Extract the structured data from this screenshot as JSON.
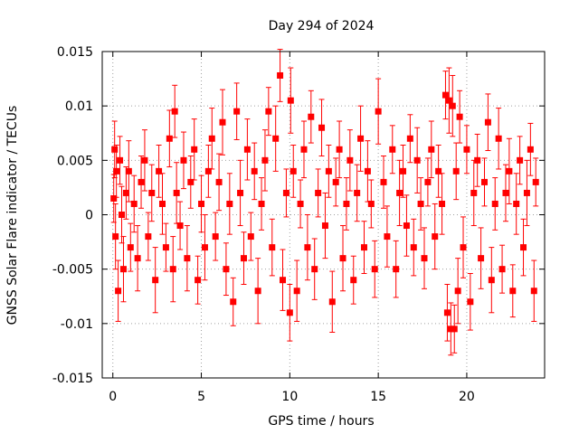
{
  "chart_data": {
    "type": "scatter",
    "title": "Day 294 of 2024",
    "xlabel": "GPS time / hours",
    "ylabel": "GNSS Solar Flare indicator / TECUs",
    "xlim": [
      -0.6,
      24.4
    ],
    "ylim": [
      -0.015,
      0.015
    ],
    "xticks": [
      0,
      5,
      10,
      15,
      20
    ],
    "yticks": [
      -0.015,
      -0.01,
      -0.005,
      0,
      0.005,
      0.01,
      0.015
    ],
    "xtick_labels": [
      "0",
      "5",
      "10",
      "15",
      "20"
    ],
    "ytick_labels": [
      "-0.015",
      "-0.01",
      "-0.005",
      "0",
      "0.005",
      "0.01",
      "0.015"
    ],
    "grid": true,
    "legend": "none",
    "series_color": "#ff0000",
    "series": [
      {
        "error_bars": true,
        "x": [
          0.05,
          0.1,
          0.15,
          0.2,
          0.3,
          0.4,
          0.5,
          0.6,
          0.75,
          0.9,
          1.0,
          1.2,
          1.4,
          1.6,
          1.8,
          2.0,
          2.2,
          2.4,
          2.6,
          2.8,
          3.0,
          3.2,
          3.4,
          3.5,
          3.6,
          3.8,
          4.0,
          4.2,
          4.4,
          4.6,
          4.8,
          5.0,
          5.2,
          5.4,
          5.6,
          5.8,
          6.0,
          6.2,
          6.4,
          6.6,
          6.8,
          7.0,
          7.2,
          7.4,
          7.6,
          7.8,
          8.0,
          8.2,
          8.4,
          8.6,
          8.8,
          9.0,
          9.2,
          9.45,
          9.6,
          9.8,
          10.0,
          10.05,
          10.2,
          10.4,
          10.6,
          10.8,
          11.0,
          11.2,
          11.4,
          11.6,
          11.8,
          12.0,
          12.2,
          12.4,
          12.6,
          12.8,
          13.0,
          13.2,
          13.4,
          13.6,
          13.8,
          14.0,
          14.2,
          14.4,
          14.6,
          14.8,
          15.0,
          15.3,
          15.5,
          15.8,
          16.0,
          16.2,
          16.4,
          16.6,
          16.8,
          17.0,
          17.2,
          17.4,
          17.6,
          17.8,
          18.0,
          18.2,
          18.4,
          18.6,
          18.8,
          18.9,
          19.0,
          19.1,
          19.2,
          19.3,
          19.4,
          19.5,
          19.6,
          19.8,
          20.0,
          20.2,
          20.4,
          20.6,
          20.8,
          21.0,
          21.2,
          21.4,
          21.6,
          21.8,
          22.0,
          22.2,
          22.4,
          22.6,
          22.8,
          23.0,
          23.2,
          23.4,
          23.6,
          23.8,
          23.9
        ],
        "y": [
          0.0015,
          0.006,
          -0.002,
          0.004,
          -0.007,
          0.005,
          0.0,
          -0.005,
          0.002,
          0.004,
          -0.003,
          0.001,
          -0.004,
          0.003,
          0.005,
          -0.002,
          0.002,
          -0.006,
          0.004,
          0.001,
          -0.003,
          0.007,
          -0.005,
          0.0095,
          0.002,
          -0.001,
          0.005,
          -0.004,
          0.003,
          0.006,
          -0.006,
          0.001,
          -0.003,
          0.004,
          0.007,
          -0.002,
          0.003,
          0.0085,
          -0.005,
          0.001,
          -0.008,
          0.0095,
          0.002,
          -0.004,
          0.006,
          -0.002,
          0.004,
          -0.007,
          0.001,
          0.005,
          0.0095,
          -0.003,
          0.007,
          0.0128,
          -0.006,
          0.002,
          -0.009,
          0.0105,
          0.004,
          -0.007,
          0.001,
          0.006,
          -0.003,
          0.009,
          -0.005,
          0.002,
          0.008,
          -0.001,
          0.004,
          -0.008,
          0.003,
          0.006,
          -0.004,
          0.001,
          0.005,
          -0.006,
          0.002,
          0.007,
          -0.003,
          0.004,
          0.001,
          -0.005,
          0.0095,
          0.003,
          -0.002,
          0.006,
          -0.005,
          0.002,
          0.004,
          -0.001,
          0.007,
          -0.003,
          0.005,
          0.001,
          -0.004,
          0.003,
          0.006,
          -0.002,
          0.004,
          0.001,
          0.011,
          -0.009,
          0.0105,
          -0.0105,
          0.01,
          -0.0105,
          0.004,
          -0.007,
          0.009,
          -0.003,
          0.006,
          -0.008,
          0.002,
          0.005,
          -0.004,
          0.003,
          0.0085,
          -0.006,
          0.001,
          0.007,
          -0.005,
          0.002,
          0.004,
          -0.007,
          0.001,
          0.005,
          -0.003,
          0.002,
          0.006,
          -0.007,
          0.003
        ]
      }
    ]
  }
}
